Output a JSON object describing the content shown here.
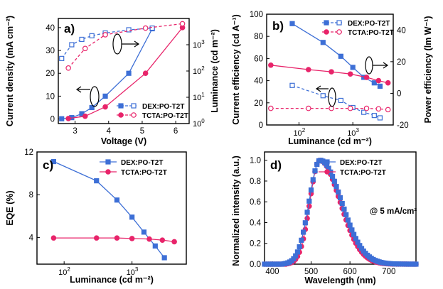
{
  "colors": {
    "blue": "#3d6fd6",
    "pink": "#e8246a",
    "axis": "#000000"
  },
  "chart_data": [
    {
      "panel_label": "a)",
      "type": "line",
      "xlabel": "Voltage (V)",
      "ylabel": "Current density (mA cm⁻²)",
      "y2label": "Luminance (cd m⁻²)",
      "xlim": [
        2.5,
        6.4
      ],
      "ylim": [
        -2,
        44
      ],
      "y2lim_log10": [
        0,
        4
      ],
      "x_ticks": [
        "3",
        "4",
        "5",
        "6"
      ],
      "y_ticks": [
        "0",
        "10",
        "20",
        "30",
        "40"
      ],
      "y2_ticks": [
        {
          "base": "10",
          "exp": "0"
        },
        {
          "base": "10",
          "exp": "1"
        },
        {
          "base": "10",
          "exp": "2"
        },
        {
          "base": "10",
          "exp": "3"
        }
      ],
      "legend": {
        "placement": "bottom-right",
        "entries": [
          "DEX:PO-T2T",
          "TCTA:PO-T2T"
        ]
      },
      "series": [
        {
          "name": "DEX:PO-T2T",
          "axis": "left",
          "marker": "square",
          "filled": true,
          "x": [
            2.6,
            2.9,
            3.2,
            3.5,
            3.9,
            4.6,
            5.3
          ],
          "y": [
            0.1,
            0.6,
            2.3,
            5,
            10,
            20,
            39.5
          ]
        },
        {
          "name": "DEX:PO-T2T",
          "axis": "right",
          "marker": "square",
          "filled": false,
          "x": [
            2.6,
            2.9,
            3.2,
            3.5,
            3.9,
            4.6,
            5.3
          ],
          "y": [
            300,
            1000,
            1600,
            2200,
            2800,
            3700,
            4300
          ]
        },
        {
          "name": "TCTA:PO-T2T",
          "axis": "left",
          "marker": "circle",
          "filled": true,
          "x": [
            2.8,
            3.3,
            3.9,
            5.1,
            6.2
          ],
          "y": [
            0.2,
            1.2,
            5.3,
            20,
            40
          ]
        },
        {
          "name": "TCTA:PO-T2T",
          "axis": "right",
          "marker": "circle",
          "filled": false,
          "x": [
            2.8,
            3.3,
            3.9,
            5.1,
            6.2
          ],
          "y": [
            130,
            720,
            2400,
            4300,
            6300
          ]
        }
      ]
    },
    {
      "panel_label": "b)",
      "type": "line",
      "xlabel": "Luminance (cd m⁻²)",
      "ylabel": "Current efficiency (cd A⁻¹)",
      "y2label": "Power efficiency (lm W⁻¹)",
      "xlim_log10": [
        1.4,
        3.75
      ],
      "ylim": [
        0,
        100
      ],
      "y2lim": [
        -20,
        50
      ],
      "x_ticks": [
        {
          "base": "10",
          "exp": "2"
        },
        {
          "base": "10",
          "exp": "3"
        }
      ],
      "y_ticks": [
        "0",
        "20",
        "40",
        "60",
        "80",
        "100"
      ],
      "y2_ticks": [
        "-20",
        "0",
        "20",
        "40"
      ],
      "legend": {
        "placement": "top-right",
        "entries": [
          "DEX:PO-T2T",
          "TCTA:PO-T2T"
        ]
      },
      "series": [
        {
          "name": "DEX:PO-T2T",
          "axis": "left",
          "marker": "square",
          "filled": true,
          "x": [
            75,
            280,
            600,
            1000,
            1600,
            2500,
            3200
          ],
          "y": [
            91.5,
            74.5,
            62,
            52,
            43,
            38,
            35
          ]
        },
        {
          "name": "DEX:PO-T2T",
          "axis": "right",
          "marker": "square",
          "filled": false,
          "x": [
            75,
            280,
            600,
            1000,
            1600,
            2500,
            3200
          ],
          "y": [
            5,
            -1.5,
            -4.5,
            -9,
            -12,
            -14,
            -15.5
          ]
        },
        {
          "name": "TCTA:PO-T2T",
          "axis": "left",
          "marker": "circle",
          "filled": true,
          "x": [
            30,
            150,
            400,
            900,
            1800,
            3000,
            4500
          ],
          "y": [
            54,
            50,
            48,
            46,
            43,
            40,
            38
          ]
        },
        {
          "name": "TCTA:PO-T2T",
          "axis": "right",
          "marker": "circle",
          "filled": false,
          "x": [
            30,
            150,
            400,
            900,
            1800,
            3000,
            4500
          ],
          "y": [
            -9.5,
            -9.5,
            -9.5,
            -9.5,
            -9.5,
            -9.8,
            -10.3
          ]
        }
      ]
    },
    {
      "panel_label": "c)",
      "type": "line",
      "xlabel": "Luminance (cd m⁻²)",
      "ylabel": "EQE (%)",
      "xlim_log10": [
        1.6,
        3.8
      ],
      "ylim": [
        1.5,
        12
      ],
      "x_ticks": [
        {
          "base": "10",
          "exp": "2"
        },
        {
          "base": "10",
          "exp": "3"
        }
      ],
      "y_ticks": [
        "4",
        "8",
        "12"
      ],
      "legend": {
        "placement": "top-right",
        "entries": [
          "DEX:PO-T2T",
          "TCTA:PO-T2T"
        ]
      },
      "series": [
        {
          "name": "DEX:PO-T2T",
          "marker": "square",
          "filled": true,
          "x": [
            70,
            300,
            600,
            1000,
            1500,
            2200,
            3000
          ],
          "y": [
            11.1,
            9.3,
            7.5,
            5.9,
            4.5,
            3.2,
            2.1
          ]
        },
        {
          "name": "TCTA:PO-T2T",
          "marker": "circle",
          "filled": true,
          "x": [
            70,
            300,
            600,
            1000,
            1800,
            2800,
            4200
          ],
          "y": [
            3.95,
            3.95,
            3.95,
            3.9,
            3.85,
            3.75,
            3.6
          ]
        }
      ]
    },
    {
      "panel_label": "d)",
      "type": "line",
      "xlabel": "Wavelength (nm)",
      "ylabel": "Normalized intensity (a.u.)",
      "xlim": [
        380,
        770
      ],
      "ylim": [
        0,
        1.08
      ],
      "x_ticks": [
        "400",
        "500",
        "600",
        "700"
      ],
      "y_ticks": [
        "0.0",
        "0.2",
        "0.4",
        "0.6",
        "0.8",
        "1.0"
      ],
      "annotation": "@ 5 mA/cm²",
      "legend": {
        "placement": "top-right",
        "entries": [
          "DEX:PO-T2T",
          "TCTA:PO-T2T"
        ]
      },
      "series": [
        {
          "name": "DEX:PO-T2T",
          "marker": "square",
          "filled": true,
          "peak_nm": 523,
          "width_left_nm": 28,
          "width_right_nm": 55,
          "onset_nm": 430
        },
        {
          "name": "TCTA:PO-T2T",
          "marker": "circle",
          "filled": true,
          "peak_nm": 522,
          "width_left_nm": 25,
          "width_right_nm": 52,
          "onset_nm": 440
        }
      ]
    }
  ]
}
